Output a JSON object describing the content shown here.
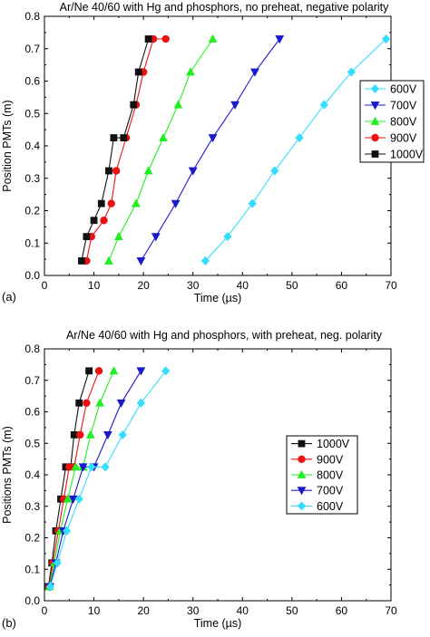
{
  "chart_data": [
    {
      "type": "line",
      "panel_label": "(a)",
      "title": "Ar/Ne 40/60 with Hg and phosphors, no preheat, negative polarity",
      "xlabel": "Time  (µs)",
      "ylabel": "Position PMTs (m)",
      "xlim": [
        0,
        70
      ],
      "ylim": [
        0,
        0.8
      ],
      "x_ticks": [
        "0",
        "10",
        "20",
        "30",
        "40",
        "50",
        "60",
        "70"
      ],
      "y_ticks": [
        "0.0",
        "0.1",
        "0.2",
        "0.3",
        "0.4",
        "0.5",
        "0.6",
        "0.7",
        "0.8"
      ],
      "grid": false,
      "legend_position": "right",
      "series": [
        {
          "name": "600V",
          "marker": "diamond",
          "color": "#33ddff",
          "x": [
            32.5,
            37.0,
            42.0,
            46.5,
            51.5,
            56.5,
            62.0,
            69.0
          ],
          "y": [
            0.045,
            0.12,
            0.222,
            0.323,
            0.425,
            0.527,
            0.628,
            0.73
          ]
        },
        {
          "name": "700V",
          "marker": "triangle-down",
          "color": "#1a1acc",
          "x": [
            19.5,
            22.5,
            26.5,
            30.0,
            34.0,
            38.5,
            42.5,
            47.5
          ],
          "y": [
            0.045,
            0.12,
            0.222,
            0.323,
            0.425,
            0.527,
            0.628,
            0.73
          ]
        },
        {
          "name": "800V",
          "marker": "triangle-up",
          "color": "#22ee22",
          "x": [
            13.0,
            15.0,
            18.5,
            21.0,
            24.0,
            27.0,
            29.5,
            34.0
          ],
          "y": [
            0.045,
            0.12,
            0.222,
            0.323,
            0.425,
            0.527,
            0.628,
            0.73
          ]
        },
        {
          "name": "900V",
          "marker": "circle",
          "color": "#ee1111",
          "x": [
            8.5,
            9.5,
            12.0,
            13.5,
            14.5,
            16.5,
            18.5,
            20.0,
            22.0,
            24.5
          ],
          "y": [
            0.045,
            0.12,
            0.17,
            0.222,
            0.323,
            0.425,
            0.527,
            0.628,
            0.73,
            0.73
          ]
        },
        {
          "name": "1000V",
          "marker": "square",
          "color": "#111111",
          "x": [
            7.5,
            8.5,
            10.0,
            11.5,
            13.0,
            14.0,
            16.0,
            18.0,
            19.0,
            21.0
          ],
          "y": [
            0.045,
            0.12,
            0.17,
            0.222,
            0.323,
            0.425,
            0.425,
            0.527,
            0.628,
            0.73
          ]
        }
      ]
    },
    {
      "type": "line",
      "panel_label": "(b)",
      "title": "Ar/Ne 40/60 with Hg and phosphors, with preheat, neg. polarity",
      "xlabel": "Time  (µs)",
      "ylabel": "Positions PMTs (m)",
      "xlim": [
        0,
        70
      ],
      "ylim": [
        0,
        0.8
      ],
      "x_ticks": [
        "0",
        "10",
        "20",
        "30",
        "40",
        "50",
        "60",
        "70"
      ],
      "y_ticks": [
        "0.0",
        "0.1",
        "0.2",
        "0.3",
        "0.4",
        "0.5",
        "0.6",
        "0.7",
        "0.8"
      ],
      "grid": false,
      "legend_position": "right",
      "series": [
        {
          "name": "1000V",
          "marker": "square",
          "color": "#111111",
          "x": [
            0.8,
            1.5,
            2.3,
            3.3,
            4.3,
            5.3,
            6.0,
            7.0,
            9.0
          ],
          "y": [
            0.045,
            0.12,
            0.222,
            0.323,
            0.425,
            0.425,
            0.527,
            0.628,
            0.73
          ]
        },
        {
          "name": "900V",
          "marker": "circle",
          "color": "#ee1111",
          "x": [
            0.9,
            1.7,
            2.8,
            3.9,
            5.0,
            6.0,
            7.2,
            8.5,
            11.0
          ],
          "y": [
            0.045,
            0.12,
            0.222,
            0.323,
            0.425,
            0.425,
            0.527,
            0.628,
            0.73
          ]
        },
        {
          "name": "800V",
          "marker": "triangle-up",
          "color": "#22ee22",
          "x": [
            1.0,
            2.0,
            3.2,
            4.7,
            6.3,
            7.8,
            9.3,
            11.2,
            14.0
          ],
          "y": [
            0.045,
            0.12,
            0.222,
            0.323,
            0.425,
            0.425,
            0.527,
            0.628,
            0.73
          ]
        },
        {
          "name": "700V",
          "marker": "triangle-down",
          "color": "#1a1acc",
          "x": [
            1.1,
            2.3,
            3.8,
            5.8,
            7.8,
            10.0,
            12.8,
            15.5,
            19.5
          ],
          "y": [
            0.045,
            0.12,
            0.222,
            0.323,
            0.425,
            0.425,
            0.527,
            0.628,
            0.73
          ]
        },
        {
          "name": "600V",
          "marker": "diamond",
          "color": "#33ddff",
          "x": [
            1.2,
            2.6,
            4.5,
            7.0,
            9.5,
            12.3,
            15.8,
            19.5,
            24.5
          ],
          "y": [
            0.045,
            0.12,
            0.222,
            0.323,
            0.425,
            0.425,
            0.527,
            0.628,
            0.73
          ]
        }
      ]
    }
  ]
}
